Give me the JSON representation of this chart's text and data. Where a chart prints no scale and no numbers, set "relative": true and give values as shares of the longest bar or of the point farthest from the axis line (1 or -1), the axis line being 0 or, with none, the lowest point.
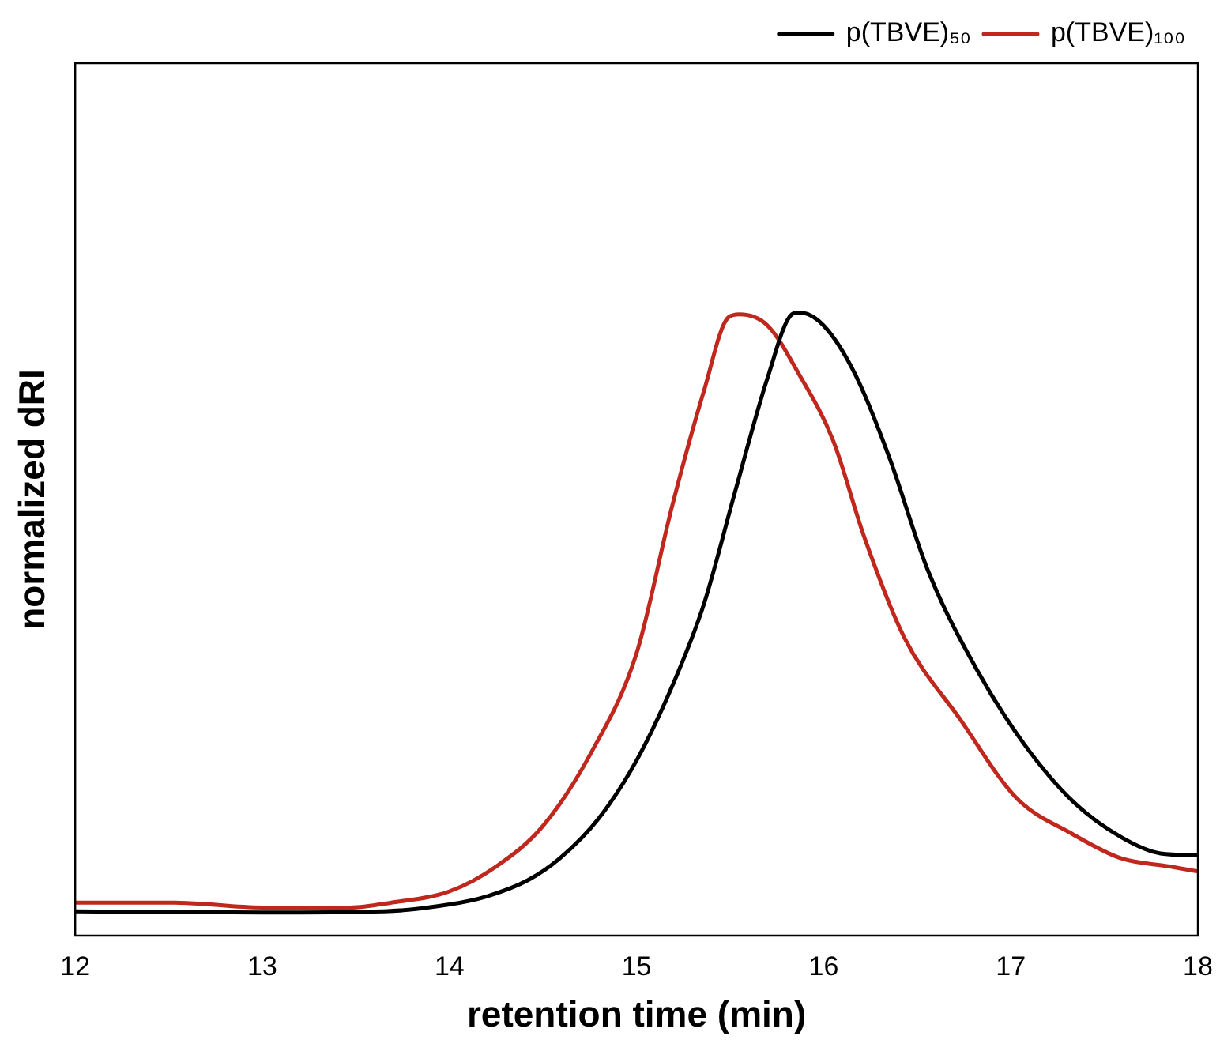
{
  "chart_data": {
    "type": "line",
    "xlabel": "retention time (min)",
    "ylabel": "normalized dRI",
    "relative": true,
    "xlim": [
      12,
      18
    ],
    "xticks": [
      12,
      13,
      14,
      15,
      16,
      17,
      18
    ],
    "grid": false,
    "legend": "top right",
    "marker": "none",
    "line_style": "solid",
    "series": [
      {
        "name": "p(TBVE)₅₀",
        "color": "#000000",
        "x": [
          12.0,
          13.0,
          13.65,
          14.0,
          14.2,
          14.42,
          14.59,
          14.8,
          15.0,
          15.19,
          15.36,
          15.53,
          15.7,
          15.83,
          15.87,
          16.0,
          16.17,
          16.35,
          16.56,
          16.82,
          17.07,
          17.33,
          17.59,
          17.8,
          18.0
        ],
        "values": [
          0.039,
          0.037,
          0.039,
          0.05,
          0.063,
          0.089,
          0.124,
          0.189,
          0.281,
          0.4,
          0.532,
          0.716,
          0.895,
          0.997,
          1.0,
          0.979,
          0.9,
          0.768,
          0.584,
          0.426,
          0.308,
          0.216,
          0.158,
          0.132,
          0.129
        ]
      },
      {
        "name": "p(TBVE)₁₀₀",
        "color": "#c0281e",
        "x": [
          12.0,
          12.53,
          13.0,
          13.47,
          13.69,
          14.0,
          14.25,
          14.5,
          14.76,
          15.0,
          15.19,
          15.36,
          15.49,
          15.55,
          15.7,
          15.87,
          16.05,
          16.22,
          16.43,
          16.73,
          17.03,
          17.33,
          17.59,
          17.85,
          18.0
        ],
        "values": [
          0.053,
          0.053,
          0.045,
          0.045,
          0.053,
          0.071,
          0.111,
          0.176,
          0.295,
          0.453,
          0.689,
          0.874,
          0.992,
          0.997,
          0.979,
          0.9,
          0.795,
          0.637,
          0.479,
          0.347,
          0.221,
          0.163,
          0.124,
          0.111,
          0.103
        ]
      }
    ]
  }
}
